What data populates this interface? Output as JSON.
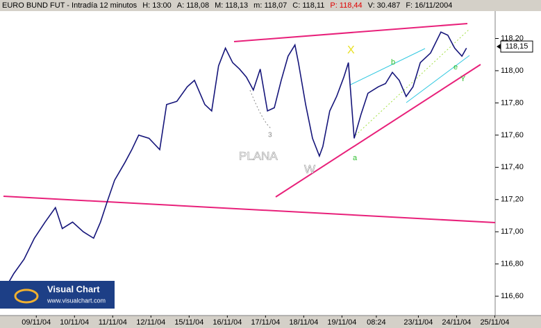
{
  "header": {
    "title": "EURO BUND FUT - Intradía 12 minutos",
    "fields": [
      "H: 13:00",
      "A: 118,08",
      "M: 118,13",
      "m: 118,07",
      "C: 118,11",
      "P: 118,44",
      "V: 30.487",
      "F: 16/11/2004"
    ]
  },
  "chart_data": {
    "type": "line",
    "color": "#15157a",
    "x": [
      -0.36,
      -0.09,
      0.18,
      0.45,
      0.73,
      1.0,
      1.18,
      1.45,
      1.73,
      2.0,
      2.18,
      2.36,
      2.55,
      2.82,
      3.0,
      3.18,
      3.45,
      3.73,
      3.91,
      4.18,
      4.45,
      4.64,
      4.91,
      5.09,
      5.27,
      5.45,
      5.64,
      5.82,
      6.0,
      6.18,
      6.36,
      6.55,
      6.73,
      6.91,
      7.09,
      7.27,
      7.36,
      7.55,
      7.73,
      7.91,
      8.0,
      8.18,
      8.36,
      8.55,
      8.67,
      8.82,
      9.0,
      9.18,
      9.45,
      9.64,
      9.82,
      10.0,
      10.18,
      10.36,
      10.55,
      10.82,
      11.09,
      11.27,
      11.45,
      11.64,
      11.76
    ],
    "values": [
      116.63,
      116.74,
      116.83,
      116.96,
      117.06,
      117.15,
      117.02,
      117.06,
      117.0,
      116.96,
      117.06,
      117.19,
      117.32,
      117.43,
      117.51,
      117.6,
      117.58,
      117.51,
      117.79,
      117.81,
      117.9,
      117.94,
      117.79,
      117.75,
      118.03,
      118.14,
      118.05,
      118.01,
      117.96,
      117.88,
      118.01,
      117.75,
      117.77,
      117.94,
      118.09,
      118.16,
      118.05,
      117.79,
      117.58,
      117.47,
      117.53,
      117.75,
      117.84,
      117.96,
      118.05,
      117.58,
      117.73,
      117.86,
      117.9,
      117.92,
      117.99,
      117.94,
      117.84,
      117.9,
      118.05,
      118.11,
      118.24,
      118.22,
      118.14,
      118.09,
      118.14
    ],
    "xlim": [
      -0.45,
      12.51
    ],
    "ylim": [
      116.48,
      118.37
    ],
    "xticks": [
      {
        "value": 0.5,
        "label": "09/11/04"
      },
      {
        "value": 1.5,
        "label": "10/11/04"
      },
      {
        "value": 2.5,
        "label": "11/11/04"
      },
      {
        "value": 3.5,
        "label": "12/11/04"
      },
      {
        "value": 4.5,
        "label": "15/11/04"
      },
      {
        "value": 5.5,
        "label": "16/11/04"
      },
      {
        "value": 6.5,
        "label": "17/11/04"
      },
      {
        "value": 7.5,
        "label": "18/11/04"
      },
      {
        "value": 8.5,
        "label": "19/11/04"
      },
      {
        "value": 9.4,
        "label": "08:24"
      },
      {
        "value": 10.5,
        "label": "23/11/04"
      },
      {
        "value": 11.5,
        "label": "24/11/04"
      },
      {
        "value": 12.5,
        "label": "25/11/04"
      }
    ],
    "yticks": [
      {
        "value": 116.6,
        "label": "116,60"
      },
      {
        "value": 116.8,
        "label": "116,80"
      },
      {
        "value": 117.0,
        "label": "117,00"
      },
      {
        "value": 117.2,
        "label": "117,20"
      },
      {
        "value": 117.4,
        "label": "117,40"
      },
      {
        "value": 117.6,
        "label": "117,60"
      },
      {
        "value": 117.8,
        "label": "117,80"
      },
      {
        "value": 118.0,
        "label": "118,00"
      },
      {
        "value": 118.2,
        "label": "118,20"
      }
    ],
    "current_price": {
      "value": 118.15,
      "label": "118,15"
    },
    "annotations": [
      "PLANA",
      "X",
      "W",
      "a",
      "b",
      "3",
      "e",
      "Y"
    ]
  },
  "logo": {
    "name": "Visual Chart",
    "url": "www.visualchart.com"
  }
}
